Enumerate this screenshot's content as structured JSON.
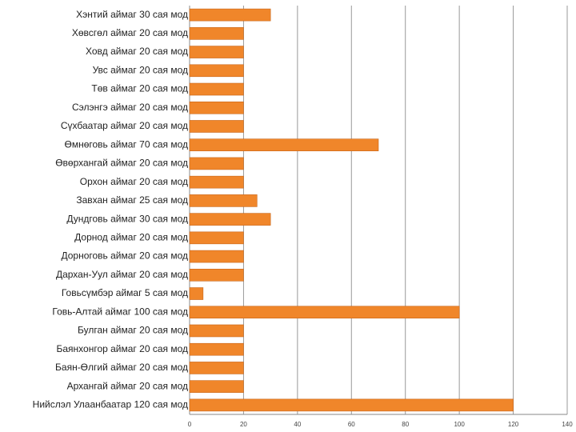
{
  "chart_data": {
    "type": "bar",
    "orientation": "horizontal",
    "categories": [
      "Хэнтий аймаг 30 сая мод",
      "Хөвсгөл аймаг 20 сая мод",
      "Ховд аймаг 20 сая мод",
      "Увс аймаг 20 сая мод",
      "Төв аймаг 20 сая мод",
      "Сэлэнгэ аймаг 20 сая мод",
      "Сүхбаатар аймаг 20 сая мод",
      "Өмнөговь аймаг 70 сая мод",
      "Өвөрхангай аймаг 20 сая мод",
      "Орхон аймаг 20 сая мод",
      "Завхан аймаг 25 сая мод",
      "Дундговь аймаг 30 сая мод",
      "Дорнод аймаг 20 сая мод",
      "Дорноговь аймаг 20 сая мод",
      "Дархан-Уул аймаг 20 сая мод",
      "Говьсүмбэр аймаг 5 сая мод",
      "Говь-Алтай аймаг 100 сая мод",
      "Булган аймаг 20 сая мод",
      "Баянхонгор аймаг 20 сая мод",
      "Баян-Өлгий аймаг 20 сая мод",
      "Архангай аймаг 20 сая мод",
      "Нийслэл Улаанбаатар 120 сая мод"
    ],
    "values": [
      30,
      20,
      20,
      20,
      20,
      20,
      20,
      70,
      20,
      20,
      25,
      30,
      20,
      20,
      20,
      5,
      100,
      20,
      20,
      20,
      20,
      120
    ],
    "color": "#f0862a",
    "xlim": [
      0,
      140
    ],
    "xticks": [
      0,
      20,
      40,
      60,
      80,
      100,
      120,
      140
    ],
    "grid": true
  }
}
